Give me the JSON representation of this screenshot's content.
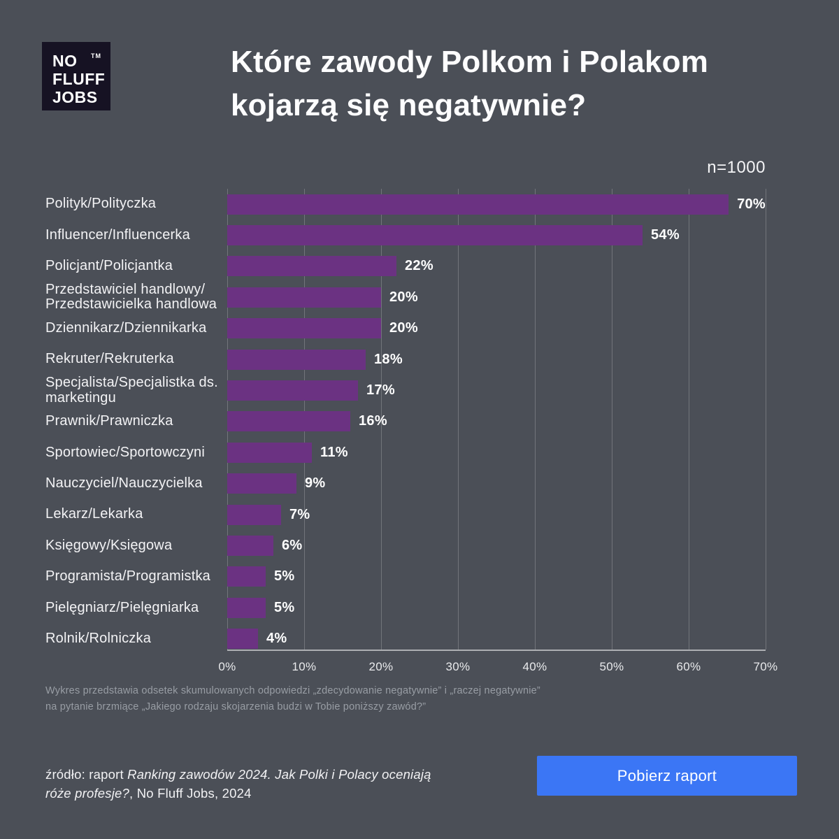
{
  "logo": {
    "word1": "NO",
    "word2": "FLUFF",
    "word3": "JOBS",
    "tm": "TM"
  },
  "title": {
    "line1": "Które zawody Polkom i Polakom",
    "line2": "kojarzą się negatywnie?"
  },
  "sample_label": "n=1000",
  "chart_data": {
    "type": "bar",
    "orientation": "horizontal",
    "categories": [
      "Polityk/Polityczka",
      "Influencer/Influencerka",
      "Policjant/Policjantka",
      "Przedstawiciel handlowy/\nPrzedstawicielka handlowa",
      "Dziennikarz/Dziennikarka",
      "Rekruter/Rekruterka",
      "Specjalista/Specjalistka ds.\nmarketingu",
      "Prawnik/Prawniczka",
      "Sportowiec/Sportowczyni",
      "Nauczyciel/Nauczycielka",
      "Lekarz/Lekarka",
      "Księgowy/Księgowa",
      "Programista/Programistka",
      "Pielęgniarz/Pielęgniarka",
      "Rolnik/Rolniczka"
    ],
    "values": [
      70,
      54,
      22,
      20,
      20,
      18,
      17,
      16,
      11,
      9,
      7,
      6,
      5,
      5,
      4
    ],
    "value_suffix": "%",
    "xlim": [
      0,
      70
    ],
    "x_ticks": [
      "0%",
      "10%",
      "20%",
      "30%",
      "40%",
      "50%",
      "60%",
      "70%"
    ],
    "bar_color": "#6b3282",
    "grid": true,
    "legend": "none",
    "title": "Które zawody Polkom i Polakom kojarzą się negatywnie?",
    "annotation": "n=1000"
  },
  "footnote": {
    "line1": "Wykres przedstawia odsetek skumulowanych odpowiedzi „zdecydowanie negatywnie” i „raczej negatywnie”",
    "line2": "na pytanie brzmiące „Jakiego rodzaju skojarzenia budzi w Tobie poniższy zawód?”"
  },
  "source": {
    "prefix": "źródło: raport ",
    "italic": "Ranking zawodów 2024. Jak Polki i Polacy oceniają róże profesje?",
    "suffix": ", No Fluff Jobs, 2024"
  },
  "button": {
    "label": "Pobierz raport",
    "color": "#3b76f5"
  },
  "colors": {
    "background": "#4b4f57",
    "bar": "#6b3282",
    "logo_background": "#161223",
    "button": "#3b76f5",
    "text_primary": "#ffffff",
    "text_muted": "#989da4"
  }
}
